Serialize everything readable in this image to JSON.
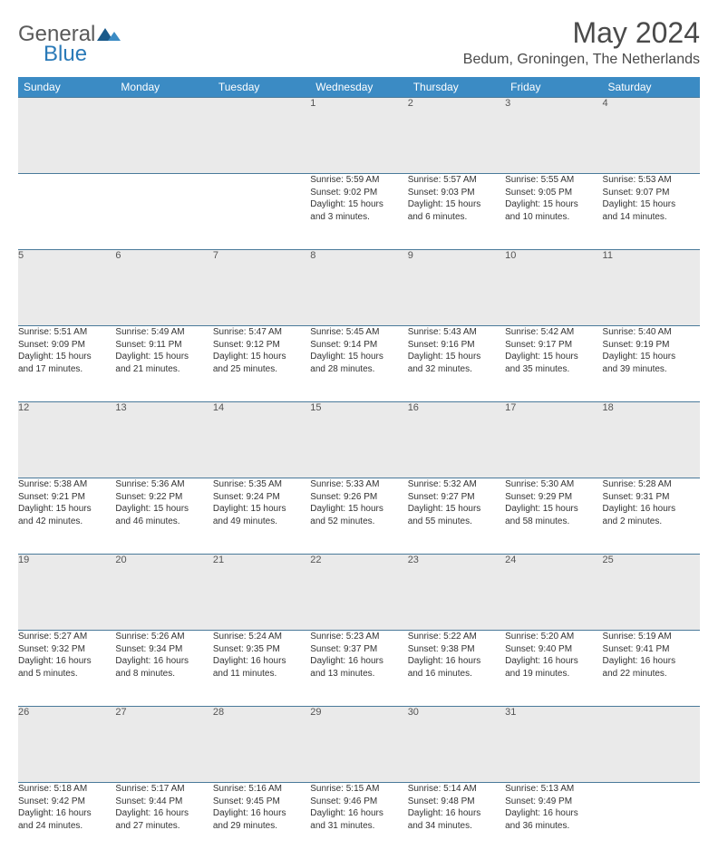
{
  "logo": {
    "text1": "General",
    "text2": "Blue"
  },
  "title": "May 2024",
  "location": "Bedum, Groningen, The Netherlands",
  "colors": {
    "header_bg": "#3b8bc4",
    "header_text": "#ffffff",
    "daynum_bg": "#eaeaea",
    "border": "#4a7a9a",
    "logo_gray": "#5a5a5a",
    "logo_blue": "#2a7ab8"
  },
  "weekdays": [
    "Sunday",
    "Monday",
    "Tuesday",
    "Wednesday",
    "Thursday",
    "Friday",
    "Saturday"
  ],
  "weeks": [
    [
      {
        "n": "",
        "l": []
      },
      {
        "n": "",
        "l": []
      },
      {
        "n": "",
        "l": []
      },
      {
        "n": "1",
        "l": [
          "Sunrise: 5:59 AM",
          "Sunset: 9:02 PM",
          "Daylight: 15 hours",
          "and 3 minutes."
        ]
      },
      {
        "n": "2",
        "l": [
          "Sunrise: 5:57 AM",
          "Sunset: 9:03 PM",
          "Daylight: 15 hours",
          "and 6 minutes."
        ]
      },
      {
        "n": "3",
        "l": [
          "Sunrise: 5:55 AM",
          "Sunset: 9:05 PM",
          "Daylight: 15 hours",
          "and 10 minutes."
        ]
      },
      {
        "n": "4",
        "l": [
          "Sunrise: 5:53 AM",
          "Sunset: 9:07 PM",
          "Daylight: 15 hours",
          "and 14 minutes."
        ]
      }
    ],
    [
      {
        "n": "5",
        "l": [
          "Sunrise: 5:51 AM",
          "Sunset: 9:09 PM",
          "Daylight: 15 hours",
          "and 17 minutes."
        ]
      },
      {
        "n": "6",
        "l": [
          "Sunrise: 5:49 AM",
          "Sunset: 9:11 PM",
          "Daylight: 15 hours",
          "and 21 minutes."
        ]
      },
      {
        "n": "7",
        "l": [
          "Sunrise: 5:47 AM",
          "Sunset: 9:12 PM",
          "Daylight: 15 hours",
          "and 25 minutes."
        ]
      },
      {
        "n": "8",
        "l": [
          "Sunrise: 5:45 AM",
          "Sunset: 9:14 PM",
          "Daylight: 15 hours",
          "and 28 minutes."
        ]
      },
      {
        "n": "9",
        "l": [
          "Sunrise: 5:43 AM",
          "Sunset: 9:16 PM",
          "Daylight: 15 hours",
          "and 32 minutes."
        ]
      },
      {
        "n": "10",
        "l": [
          "Sunrise: 5:42 AM",
          "Sunset: 9:17 PM",
          "Daylight: 15 hours",
          "and 35 minutes."
        ]
      },
      {
        "n": "11",
        "l": [
          "Sunrise: 5:40 AM",
          "Sunset: 9:19 PM",
          "Daylight: 15 hours",
          "and 39 minutes."
        ]
      }
    ],
    [
      {
        "n": "12",
        "l": [
          "Sunrise: 5:38 AM",
          "Sunset: 9:21 PM",
          "Daylight: 15 hours",
          "and 42 minutes."
        ]
      },
      {
        "n": "13",
        "l": [
          "Sunrise: 5:36 AM",
          "Sunset: 9:22 PM",
          "Daylight: 15 hours",
          "and 46 minutes."
        ]
      },
      {
        "n": "14",
        "l": [
          "Sunrise: 5:35 AM",
          "Sunset: 9:24 PM",
          "Daylight: 15 hours",
          "and 49 minutes."
        ]
      },
      {
        "n": "15",
        "l": [
          "Sunrise: 5:33 AM",
          "Sunset: 9:26 PM",
          "Daylight: 15 hours",
          "and 52 minutes."
        ]
      },
      {
        "n": "16",
        "l": [
          "Sunrise: 5:32 AM",
          "Sunset: 9:27 PM",
          "Daylight: 15 hours",
          "and 55 minutes."
        ]
      },
      {
        "n": "17",
        "l": [
          "Sunrise: 5:30 AM",
          "Sunset: 9:29 PM",
          "Daylight: 15 hours",
          "and 58 minutes."
        ]
      },
      {
        "n": "18",
        "l": [
          "Sunrise: 5:28 AM",
          "Sunset: 9:31 PM",
          "Daylight: 16 hours",
          "and 2 minutes."
        ]
      }
    ],
    [
      {
        "n": "19",
        "l": [
          "Sunrise: 5:27 AM",
          "Sunset: 9:32 PM",
          "Daylight: 16 hours",
          "and 5 minutes."
        ]
      },
      {
        "n": "20",
        "l": [
          "Sunrise: 5:26 AM",
          "Sunset: 9:34 PM",
          "Daylight: 16 hours",
          "and 8 minutes."
        ]
      },
      {
        "n": "21",
        "l": [
          "Sunrise: 5:24 AM",
          "Sunset: 9:35 PM",
          "Daylight: 16 hours",
          "and 11 minutes."
        ]
      },
      {
        "n": "22",
        "l": [
          "Sunrise: 5:23 AM",
          "Sunset: 9:37 PM",
          "Daylight: 16 hours",
          "and 13 minutes."
        ]
      },
      {
        "n": "23",
        "l": [
          "Sunrise: 5:22 AM",
          "Sunset: 9:38 PM",
          "Daylight: 16 hours",
          "and 16 minutes."
        ]
      },
      {
        "n": "24",
        "l": [
          "Sunrise: 5:20 AM",
          "Sunset: 9:40 PM",
          "Daylight: 16 hours",
          "and 19 minutes."
        ]
      },
      {
        "n": "25",
        "l": [
          "Sunrise: 5:19 AM",
          "Sunset: 9:41 PM",
          "Daylight: 16 hours",
          "and 22 minutes."
        ]
      }
    ],
    [
      {
        "n": "26",
        "l": [
          "Sunrise: 5:18 AM",
          "Sunset: 9:42 PM",
          "Daylight: 16 hours",
          "and 24 minutes."
        ]
      },
      {
        "n": "27",
        "l": [
          "Sunrise: 5:17 AM",
          "Sunset: 9:44 PM",
          "Daylight: 16 hours",
          "and 27 minutes."
        ]
      },
      {
        "n": "28",
        "l": [
          "Sunrise: 5:16 AM",
          "Sunset: 9:45 PM",
          "Daylight: 16 hours",
          "and 29 minutes."
        ]
      },
      {
        "n": "29",
        "l": [
          "Sunrise: 5:15 AM",
          "Sunset: 9:46 PM",
          "Daylight: 16 hours",
          "and 31 minutes."
        ]
      },
      {
        "n": "30",
        "l": [
          "Sunrise: 5:14 AM",
          "Sunset: 9:48 PM",
          "Daylight: 16 hours",
          "and 34 minutes."
        ]
      },
      {
        "n": "31",
        "l": [
          "Sunrise: 5:13 AM",
          "Sunset: 9:49 PM",
          "Daylight: 16 hours",
          "and 36 minutes."
        ]
      },
      {
        "n": "",
        "l": []
      }
    ]
  ]
}
